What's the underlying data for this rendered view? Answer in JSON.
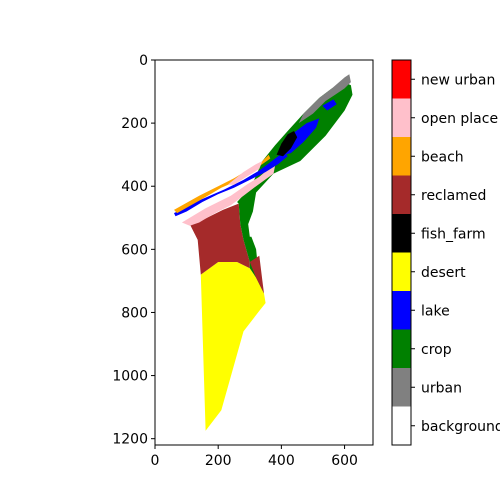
{
  "chart_data": {
    "type": "heatmap",
    "title": "",
    "xlabel": "",
    "ylabel": "",
    "xlim": [
      0,
      690
    ],
    "ylim": [
      1220,
      0
    ],
    "x_ticks": [
      0,
      200,
      400,
      600
    ],
    "y_ticks": [
      0,
      200,
      400,
      600,
      800,
      1000,
      1200
    ],
    "grid": false,
    "colorbar": {
      "placement": "right",
      "categories": [
        {
          "label": "background",
          "color": "#ffffff"
        },
        {
          "label": "urban",
          "color": "#808080"
        },
        {
          "label": "crop",
          "color": "#008000"
        },
        {
          "label": "lake",
          "color": "#0000ff"
        },
        {
          "label": "desert",
          "color": "#ffff00"
        },
        {
          "label": "fish_farm",
          "color": "#000000"
        },
        {
          "label": "reclamed",
          "color": "#a52a2a"
        },
        {
          "label": "beach",
          "color": "#ffa500"
        },
        {
          "label": "open place",
          "color": "#ffc0cb"
        },
        {
          "label": "new urban",
          "color": "#ff0000"
        }
      ]
    },
    "regions": [
      {
        "class": "desert",
        "points": [
          [
            160,
            1175
          ],
          [
            145,
            680
          ],
          [
            200,
            640
          ],
          [
            260,
            640
          ],
          [
            300,
            660
          ],
          [
            320,
            690
          ],
          [
            345,
            740
          ],
          [
            350,
            770
          ],
          [
            330,
            795
          ],
          [
            280,
            860
          ],
          [
            210,
            1110
          ]
        ]
      },
      {
        "class": "reclamed",
        "points": [
          [
            145,
            680
          ],
          [
            135,
            570
          ],
          [
            110,
            520
          ],
          [
            145,
            510
          ],
          [
            215,
            475
          ],
          [
            265,
            455
          ],
          [
            270,
            520
          ],
          [
            280,
            570
          ],
          [
            300,
            640
          ],
          [
            300,
            660
          ],
          [
            260,
            640
          ],
          [
            200,
            640
          ]
        ]
      },
      {
        "class": "crop",
        "points": [
          [
            260,
            450
          ],
          [
            305,
            400
          ],
          [
            340,
            320
          ],
          [
            380,
            270
          ],
          [
            420,
            225
          ],
          [
            470,
            170
          ],
          [
            520,
            120
          ],
          [
            560,
            90
          ],
          [
            600,
            70
          ],
          [
            620,
            80
          ],
          [
            625,
            110
          ],
          [
            600,
            160
          ],
          [
            570,
            200
          ],
          [
            540,
            240
          ],
          [
            460,
            320
          ],
          [
            375,
            360
          ],
          [
            320,
            420
          ],
          [
            310,
            480
          ],
          [
            295,
            520
          ],
          [
            300,
            560
          ],
          [
            305,
            560
          ],
          [
            320,
            600
          ],
          [
            330,
            700
          ],
          [
            345,
            740
          ],
          [
            320,
            690
          ],
          [
            300,
            660
          ],
          [
            300,
            640
          ],
          [
            280,
            570
          ],
          [
            270,
            520
          ],
          [
            265,
            455
          ]
        ]
      },
      {
        "class": "reclamed",
        "points": [
          [
            300,
            640
          ],
          [
            330,
            620
          ],
          [
            340,
            700
          ],
          [
            345,
            740
          ],
          [
            320,
            690
          ]
        ]
      },
      {
        "class": "open place",
        "points": [
          [
            85,
            515
          ],
          [
            160,
            470
          ],
          [
            240,
            430
          ],
          [
            290,
            395
          ],
          [
            330,
            370
          ],
          [
            360,
            345
          ],
          [
            380,
            335
          ],
          [
            375,
            360
          ],
          [
            320,
            400
          ],
          [
            280,
            430
          ],
          [
            240,
            460
          ],
          [
            200,
            480
          ],
          [
            165,
            500
          ],
          [
            140,
            515
          ],
          [
            110,
            525
          ]
        ]
      },
      {
        "class": "lake",
        "points": [
          [
            60,
            485
          ],
          [
            140,
            445
          ],
          [
            220,
            410
          ],
          [
            280,
            380
          ],
          [
            330,
            350
          ],
          [
            370,
            320
          ],
          [
            410,
            290
          ],
          [
            420,
            305
          ],
          [
            390,
            330
          ],
          [
            350,
            355
          ],
          [
            300,
            380
          ],
          [
            250,
            405
          ],
          [
            200,
            425
          ],
          [
            150,
            450
          ],
          [
            100,
            480
          ],
          [
            65,
            495
          ]
        ]
      },
      {
        "class": "beach",
        "points": [
          [
            60,
            475
          ],
          [
            140,
            430
          ],
          [
            200,
            400
          ],
          [
            250,
            375
          ],
          [
            300,
            345
          ],
          [
            340,
            320
          ],
          [
            360,
            300
          ],
          [
            365,
            312
          ],
          [
            340,
            330
          ],
          [
            300,
            355
          ],
          [
            255,
            385
          ],
          [
            210,
            405
          ],
          [
            150,
            440
          ],
          [
            70,
            485
          ]
        ]
      },
      {
        "class": "open place",
        "points": [
          [
            230,
            395
          ],
          [
            280,
            355
          ],
          [
            320,
            330
          ],
          [
            340,
            320
          ],
          [
            330,
            345
          ],
          [
            290,
            370
          ],
          [
            250,
            395
          ]
        ]
      },
      {
        "class": "lake",
        "points": [
          [
            400,
            270
          ],
          [
            440,
            230
          ],
          [
            480,
            200
          ],
          [
            520,
            185
          ],
          [
            510,
            215
          ],
          [
            470,
            260
          ],
          [
            430,
            295
          ],
          [
            410,
            300
          ]
        ]
      },
      {
        "class": "fish_farm",
        "points": [
          [
            385,
            300
          ],
          [
            400,
            265
          ],
          [
            420,
            235
          ],
          [
            440,
            225
          ],
          [
            450,
            245
          ],
          [
            430,
            280
          ],
          [
            405,
            305
          ]
        ]
      },
      {
        "class": "urban",
        "points": [
          [
            470,
            170
          ],
          [
            520,
            120
          ],
          [
            560,
            90
          ],
          [
            600,
            55
          ],
          [
            615,
            45
          ],
          [
            620,
            70
          ],
          [
            600,
            90
          ],
          [
            570,
            110
          ],
          [
            540,
            130
          ],
          [
            500,
            170
          ],
          [
            470,
            190
          ],
          [
            455,
            200
          ]
        ]
      },
      {
        "class": "lake",
        "points": [
          [
            530,
            145
          ],
          [
            565,
            125
          ],
          [
            575,
            140
          ],
          [
            545,
            160
          ]
        ]
      }
    ]
  }
}
